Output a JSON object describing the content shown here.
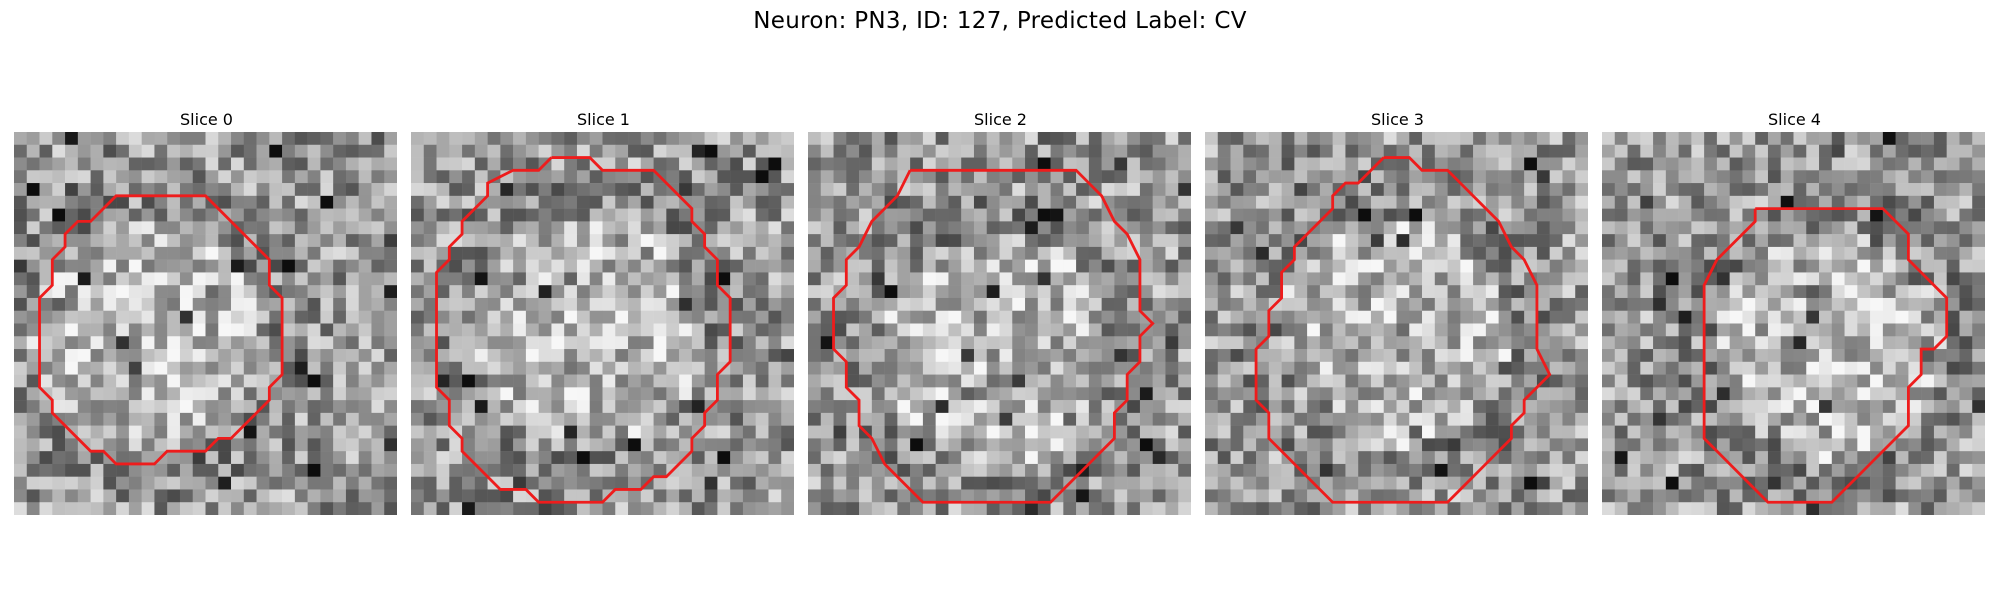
{
  "figure": {
    "title": "Neuron: PN3, ID: 127, Predicted Label: CV",
    "contour_color": "#ee1c1c"
  },
  "panels": [
    {
      "title": "Slice 0",
      "contour": [
        [
          11,
          5
        ],
        [
          15,
          5
        ],
        [
          20,
          10
        ],
        [
          20,
          12
        ],
        [
          21,
          13
        ],
        [
          21,
          19
        ],
        [
          20,
          20
        ],
        [
          20,
          21
        ],
        [
          17,
          24
        ],
        [
          16,
          24
        ],
        [
          15,
          25
        ],
        [
          12,
          25
        ],
        [
          11,
          26
        ],
        [
          8,
          26
        ],
        [
          7,
          25
        ],
        [
          6,
          25
        ],
        [
          3,
          22
        ],
        [
          3,
          21
        ],
        [
          2,
          20
        ],
        [
          2,
          13
        ],
        [
          3,
          12
        ],
        [
          3,
          10
        ],
        [
          4,
          9
        ],
        [
          4,
          8
        ],
        [
          5,
          7
        ],
        [
          6,
          7
        ],
        [
          8,
          5
        ]
      ]
    },
    {
      "title": "Slice 1",
      "contour": [
        [
          11,
          2
        ],
        [
          14,
          2
        ],
        [
          15,
          3
        ],
        [
          19,
          3
        ],
        [
          22,
          6
        ],
        [
          22,
          7
        ],
        [
          23,
          8
        ],
        [
          23,
          9
        ],
        [
          24,
          10
        ],
        [
          24,
          12
        ],
        [
          25,
          13
        ],
        [
          25,
          18
        ],
        [
          24,
          19
        ],
        [
          24,
          21
        ],
        [
          23,
          22
        ],
        [
          23,
          23
        ],
        [
          22,
          24
        ],
        [
          22,
          25
        ],
        [
          20,
          27
        ],
        [
          19,
          27
        ],
        [
          18,
          28
        ],
        [
          16,
          28
        ],
        [
          15,
          29
        ],
        [
          10,
          29
        ],
        [
          9,
          28
        ],
        [
          7,
          28
        ],
        [
          4,
          25
        ],
        [
          4,
          24
        ],
        [
          3,
          23
        ],
        [
          3,
          21
        ],
        [
          2,
          20
        ],
        [
          2,
          11
        ],
        [
          3,
          10
        ],
        [
          3,
          9
        ],
        [
          4,
          8
        ],
        [
          4,
          7
        ],
        [
          6,
          5
        ],
        [
          6,
          4
        ],
        [
          8,
          3
        ],
        [
          10,
          3
        ]
      ]
    },
    {
      "title": "Slice 2",
      "contour": [
        [
          8,
          3
        ],
        [
          21,
          3
        ],
        [
          22,
          4
        ],
        [
          23,
          5
        ],
        [
          24,
          7
        ],
        [
          25,
          8
        ],
        [
          26,
          10
        ],
        [
          26,
          14
        ],
        [
          27,
          15
        ],
        [
          26,
          16
        ],
        [
          26,
          18
        ],
        [
          25,
          19
        ],
        [
          25,
          21
        ],
        [
          24,
          22
        ],
        [
          24,
          24
        ],
        [
          23,
          25
        ],
        [
          22,
          26
        ],
        [
          21,
          27
        ],
        [
          20,
          28
        ],
        [
          19,
          29
        ],
        [
          18,
          29
        ],
        [
          9,
          29
        ],
        [
          8,
          28
        ],
        [
          7,
          27
        ],
        [
          6,
          26
        ],
        [
          5,
          24
        ],
        [
          4,
          23
        ],
        [
          4,
          21
        ],
        [
          3,
          20
        ],
        [
          3,
          18
        ],
        [
          2,
          17
        ],
        [
          2,
          13
        ],
        [
          3,
          12
        ],
        [
          3,
          10
        ],
        [
          4,
          9
        ],
        [
          5,
          7
        ],
        [
          6,
          6
        ],
        [
          7,
          5
        ]
      ]
    },
    {
      "title": "Slice 3",
      "contour": [
        [
          14,
          2
        ],
        [
          16,
          2
        ],
        [
          17,
          3
        ],
        [
          19,
          3
        ],
        [
          20,
          4
        ],
        [
          21,
          5
        ],
        [
          22,
          6
        ],
        [
          23,
          7
        ],
        [
          24,
          9
        ],
        [
          25,
          10
        ],
        [
          26,
          12
        ],
        [
          26,
          17
        ],
        [
          27,
          19
        ],
        [
          26,
          20
        ],
        [
          25,
          21
        ],
        [
          25,
          22
        ],
        [
          24,
          23
        ],
        [
          24,
          24
        ],
        [
          23,
          25
        ],
        [
          22,
          26
        ],
        [
          21,
          27
        ],
        [
          20,
          28
        ],
        [
          19,
          29
        ],
        [
          18,
          29
        ],
        [
          17,
          29
        ],
        [
          10,
          29
        ],
        [
          9,
          28
        ],
        [
          8,
          27
        ],
        [
          7,
          26
        ],
        [
          6,
          25
        ],
        [
          5,
          24
        ],
        [
          5,
          23
        ],
        [
          5,
          22
        ],
        [
          4,
          21
        ],
        [
          4,
          19
        ],
        [
          4,
          17
        ],
        [
          5,
          16
        ],
        [
          5,
          14
        ],
        [
          6,
          13
        ],
        [
          6,
          11
        ],
        [
          7,
          10
        ],
        [
          7,
          9
        ],
        [
          8,
          8
        ],
        [
          9,
          7
        ],
        [
          10,
          6
        ],
        [
          10,
          5
        ],
        [
          11,
          4
        ],
        [
          12,
          4
        ],
        [
          13,
          3
        ]
      ]
    },
    {
      "title": "Slice 4",
      "contour": [
        [
          12,
          6
        ],
        [
          22,
          6
        ],
        [
          23,
          7
        ],
        [
          24,
          8
        ],
        [
          24,
          10
        ],
        [
          25,
          11
        ],
        [
          26,
          12
        ],
        [
          27,
          13
        ],
        [
          27,
          16
        ],
        [
          26,
          17
        ],
        [
          25,
          17
        ],
        [
          25,
          19
        ],
        [
          24,
          20
        ],
        [
          24,
          23
        ],
        [
          23,
          24
        ],
        [
          22,
          25
        ],
        [
          21,
          26
        ],
        [
          20,
          27
        ],
        [
          18,
          29
        ],
        [
          13,
          29
        ],
        [
          11,
          27
        ],
        [
          10,
          26
        ],
        [
          9,
          25
        ],
        [
          8,
          24
        ],
        [
          8,
          20
        ],
        [
          8,
          16
        ],
        [
          8,
          12
        ],
        [
          9,
          10
        ],
        [
          10,
          9
        ],
        [
          11,
          8
        ],
        [
          12,
          7
        ]
      ]
    }
  ]
}
